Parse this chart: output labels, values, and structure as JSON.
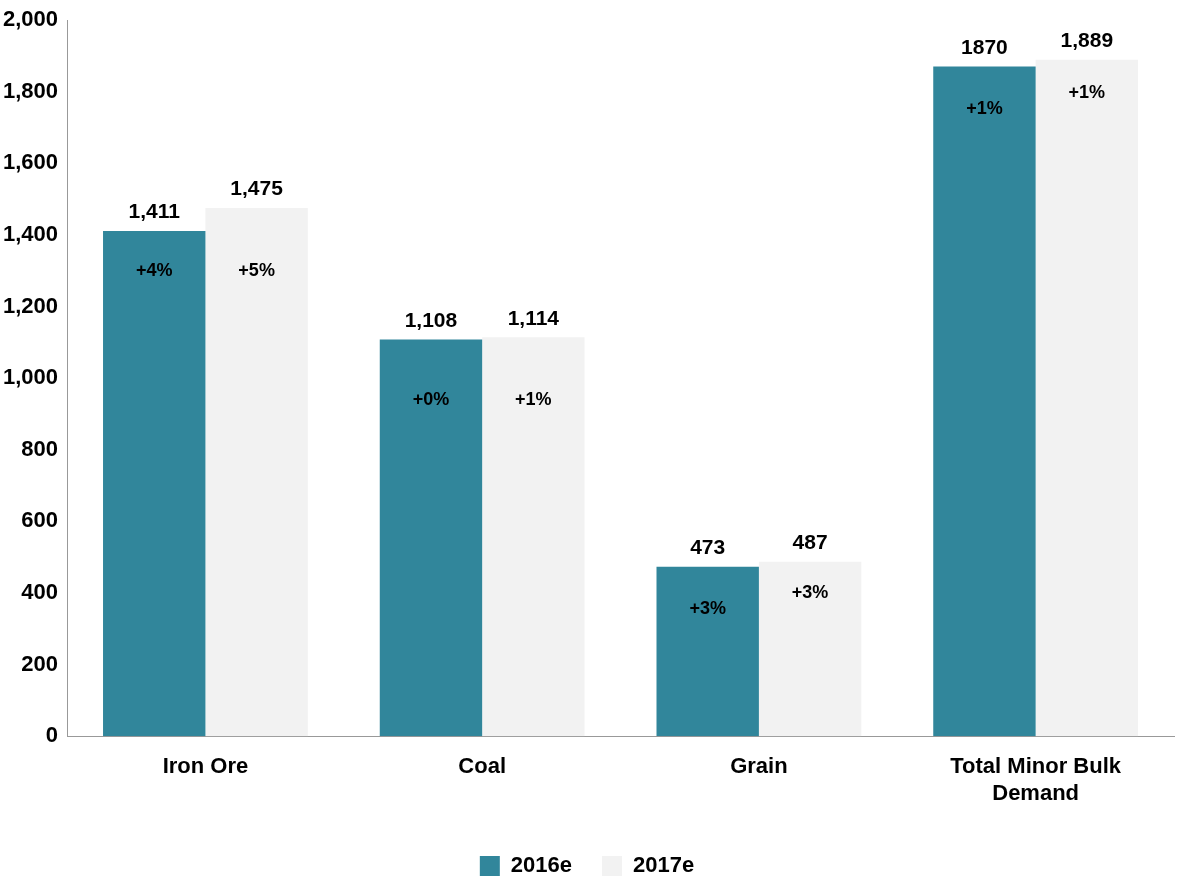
{
  "chart_data": {
    "type": "bar",
    "categories": [
      "Iron Ore",
      "Coal",
      "Grain",
      "Total Minor Bulk Demand"
    ],
    "series": [
      {
        "name": "2016e",
        "color": "#31869b",
        "values": [
          1411,
          1108,
          473,
          1870
        ],
        "value_labels": [
          "1,411",
          "1,108",
          "473",
          "1870"
        ]
      },
      {
        "name": "2017e",
        "color": "#f2f2f2",
        "values": [
          1475,
          1114,
          487,
          1889
        ],
        "value_labels": [
          "1,475",
          "1,114",
          "487",
          "1,889"
        ]
      }
    ],
    "ylim": [
      0,
      2000
    ],
    "yticks": [
      0,
      200,
      400,
      600,
      800,
      {
        "value": 1000,
        "label": "1,000"
      },
      {
        "value": 1200,
        "label": "1,200"
      },
      {
        "value": 1400,
        "label": "1,400"
      },
      {
        "value": 1600,
        "label": "1,600"
      },
      {
        "value": 1800,
        "label": "1,800"
      },
      {
        "value": 2000,
        "label": "2,000"
      }
    ],
    "grid": false,
    "legend": "bottom",
    "annotations": [
      {
        "text": "+4%",
        "x": "Iron Ore",
        "y": 1300
      },
      {
        "text": "+5%",
        "x": "Iron Ore",
        "y": 1300
      },
      {
        "text": "+0%",
        "x": "Coal",
        "y": 940
      },
      {
        "text": "+1%",
        "x": "Coal",
        "y": 940
      },
      {
        "text": "+3%",
        "x": "Grain",
        "y": 355
      },
      {
        "text": "+3%",
        "x": "Grain",
        "y": 400
      },
      {
        "text": "+1%",
        "x": "Total Minor Bulk Demand",
        "y": 1750
      },
      {
        "text": "+1%",
        "x": "Total Minor Bulk Demand",
        "y": 1795
      }
    ]
  }
}
